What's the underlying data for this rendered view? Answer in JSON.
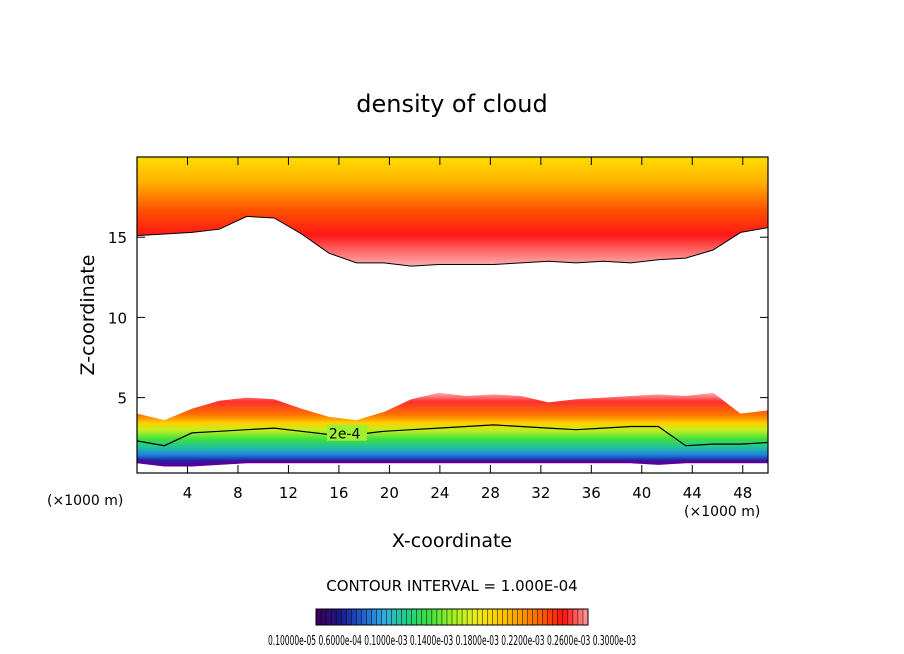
{
  "chart_data": {
    "type": "heatmap",
    "title": "density of cloud",
    "xlabel": "X-coordinate",
    "ylabel": "Z-coordinate",
    "x_unit_left": "(×1000 m)",
    "x_unit_right": "(×1000 m)",
    "xlim": [
      0,
      50
    ],
    "ylim": [
      0.3,
      20
    ],
    "x_ticks": [
      4,
      8,
      12,
      16,
      20,
      24,
      28,
      32,
      36,
      40,
      44,
      48
    ],
    "y_ticks": [
      5,
      10,
      15
    ],
    "contour_label": "2e-4",
    "contour_interval_text": "CONTOUR INTERVAL = 1.000E-04",
    "colorbar": {
      "colors": [
        "#3a005a",
        "#1a1a8c",
        "#2060d0",
        "#30b0e0",
        "#20d080",
        "#40e040",
        "#a0f020",
        "#e8f020",
        "#ffd000",
        "#ffa000",
        "#ff6000",
        "#ff1010",
        "#ff9090"
      ],
      "labels_text": "0.10000e-05 0.6000e-04 0.1000e-03 0.1400e-03 0.1800e-03 0.2200e-03 0.2600e-03 0.3000e-03"
    },
    "upper_layer": {
      "base_z": [
        15.1,
        15.2,
        15.3,
        15.5,
        16.3,
        16.2,
        15.2,
        14.0,
        13.4,
        13.4,
        13.2,
        13.3,
        13.3,
        13.3,
        13.4,
        13.5,
        13.4,
        13.5,
        13.4,
        13.6,
        13.7,
        14.2,
        15.3,
        15.6
      ],
      "top_z": 19.7
    },
    "lower_layer": {
      "top_z": [
        4.0,
        3.6,
        4.3,
        4.8,
        5.0,
        4.9,
        4.3,
        3.8,
        3.6,
        4.1,
        4.9,
        5.3,
        5.1,
        5.2,
        5.1,
        4.7,
        4.9,
        5.0,
        5.1,
        5.2,
        5.1,
        5.3,
        4.0,
        4.2
      ],
      "contour_2e4_z": [
        2.3,
        2.0,
        2.8,
        2.9,
        3.0,
        3.1,
        2.9,
        2.7,
        2.7,
        2.9,
        3.0,
        3.1,
        3.2,
        3.3,
        3.2,
        3.1,
        3.0,
        3.1,
        3.2,
        3.2,
        2.0,
        2.1,
        2.1,
        2.2
      ],
      "base_z": [
        1.0,
        0.8,
        0.8,
        0.9,
        1.0,
        1.0,
        1.0,
        1.0,
        1.0,
        1.0,
        1.0,
        1.0,
        1.0,
        1.0,
        1.0,
        1.0,
        1.0,
        1.0,
        1.0,
        0.9,
        1.0,
        1.0,
        1.0,
        1.0
      ]
    }
  }
}
